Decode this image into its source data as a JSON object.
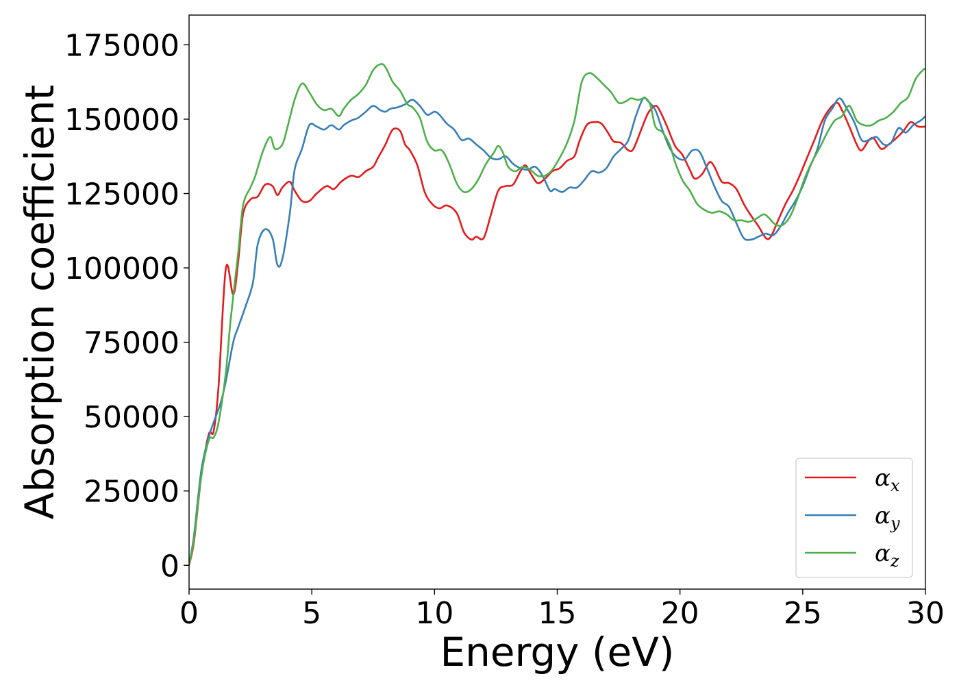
{
  "chart_data": {
    "type": "line",
    "title": "",
    "xlabel": "Energy (eV)",
    "ylabel": "Absorption coefficient",
    "xlim": [
      0,
      30
    ],
    "ylim": [
      -8000,
      185000
    ],
    "xticks": [
      0,
      5,
      10,
      15,
      20,
      25,
      30
    ],
    "xtick_labels": [
      "0",
      "5",
      "10",
      "15",
      "20",
      "25",
      "30"
    ],
    "yticks": [
      0,
      25000,
      50000,
      75000,
      100000,
      125000,
      150000,
      175000
    ],
    "ytick_labels": [
      "0",
      "25000",
      "50000",
      "75000",
      "100000",
      "125000",
      "150000",
      "175000"
    ],
    "grid": false,
    "legend_position": "lower-right",
    "series": [
      {
        "name": "αx",
        "symbol": "α",
        "subscript": "x",
        "color": "#e41a1c",
        "x": [
          0,
          0.2,
          0.5,
          0.8,
          1.0,
          1.2,
          1.5,
          1.8,
          2.0,
          2.2,
          2.5,
          2.8,
          3.1,
          3.4,
          3.6,
          3.8,
          4.1,
          4.3,
          4.6,
          4.9,
          5.2,
          5.6,
          5.9,
          6.2,
          6.6,
          6.9,
          7.2,
          7.5,
          7.7,
          8.0,
          8.3,
          8.6,
          8.8,
          9.0,
          9.3,
          9.6,
          9.9,
          10.2,
          10.5,
          10.9,
          11.2,
          11.5,
          11.7,
          12.0,
          12.3,
          12.6,
          12.9,
          13.2,
          13.5,
          13.7,
          13.9,
          14.2,
          14.5,
          14.8,
          15.1,
          15.4,
          15.7,
          15.9,
          16.2,
          16.5,
          16.8,
          17.1,
          17.3,
          17.6,
          17.9,
          18.1,
          18.4,
          18.7,
          19.0,
          19.2,
          19.5,
          19.8,
          20.1,
          20.4,
          20.6,
          20.9,
          21.2,
          21.4,
          21.7,
          22.0,
          22.3,
          22.6,
          22.9,
          23.2,
          23.5,
          23.7,
          24.0,
          24.3,
          24.6,
          24.9,
          25.2,
          25.5,
          25.8,
          26.1,
          26.4,
          26.6,
          26.9,
          27.2,
          27.4,
          27.7,
          27.9,
          28.2,
          28.5,
          28.8,
          29.1,
          29.4,
          29.7,
          30.0
        ],
        "y": [
          0,
          8000,
          30000,
          44000,
          45000,
          60000,
          100000,
          91000,
          102000,
          118000,
          123000,
          124000,
          128000,
          127500,
          124500,
          127000,
          129000,
          126000,
          122500,
          122500,
          125000,
          127500,
          126500,
          129000,
          131000,
          130500,
          132500,
          134000,
          137000,
          141500,
          146500,
          146000,
          141500,
          139500,
          134500,
          125500,
          121500,
          120000,
          121000,
          118500,
          112000,
          109500,
          110500,
          110000,
          118000,
          126000,
          127500,
          128000,
          132500,
          134500,
          132000,
          128500,
          130000,
          132500,
          133500,
          136000,
          137500,
          142500,
          148000,
          149000,
          148500,
          145000,
          142500,
          142000,
          139500,
          140000,
          146000,
          152000,
          154500,
          152500,
          147000,
          141000,
          138000,
          133000,
          130000,
          131500,
          135500,
          134000,
          129000,
          128500,
          126500,
          121500,
          117500,
          114000,
          110000,
          110500,
          116000,
          121500,
          126000,
          131500,
          137500,
          143500,
          149500,
          153500,
          155500,
          153000,
          147500,
          141500,
          139500,
          143000,
          143500,
          140000,
          141500,
          143500,
          146000,
          149000,
          147500,
          147500
        ]
      },
      {
        "name": "αy",
        "symbol": "α",
        "subscript": "y",
        "color": "#377eb8",
        "x": [
          0,
          0.2,
          0.5,
          0.8,
          1.0,
          1.3,
          1.5,
          1.8,
          2.0,
          2.3,
          2.6,
          2.8,
          3.1,
          3.4,
          3.6,
          3.8,
          4.1,
          4.3,
          4.6,
          4.9,
          5.2,
          5.5,
          5.8,
          6.1,
          6.3,
          6.6,
          6.9,
          7.2,
          7.5,
          7.8,
          8.0,
          8.2,
          8.5,
          8.8,
          9.1,
          9.4,
          9.7,
          10.0,
          10.2,
          10.5,
          10.8,
          11.1,
          11.4,
          11.7,
          12.0,
          12.3,
          12.6,
          12.9,
          13.2,
          13.5,
          13.8,
          14.1,
          14.4,
          14.7,
          14.9,
          15.2,
          15.5,
          15.8,
          16.1,
          16.4,
          16.7,
          17.0,
          17.3,
          17.6,
          17.9,
          18.2,
          18.5,
          18.7,
          19.0,
          19.3,
          19.6,
          19.9,
          20.2,
          20.5,
          20.8,
          21.1,
          21.4,
          21.7,
          22.0,
          22.3,
          22.6,
          22.9,
          23.2,
          23.5,
          23.8,
          24.1,
          24.4,
          24.7,
          25.0,
          25.3,
          25.6,
          25.9,
          26.2,
          26.5,
          26.8,
          27.1,
          27.4,
          27.7,
          28.0,
          28.3,
          28.6,
          28.9,
          29.2,
          29.5,
          29.8,
          30.0
        ],
        "y": [
          0,
          10000,
          32000,
          43000,
          48000,
          55000,
          62000,
          75000,
          80000,
          87000,
          95000,
          108000,
          113000,
          110000,
          101000,
          103000,
          118000,
          133000,
          140000,
          148000,
          147500,
          146500,
          148000,
          146500,
          148000,
          149500,
          150500,
          152500,
          154500,
          153000,
          152500,
          153500,
          154000,
          155000,
          156500,
          154500,
          151500,
          152500,
          151500,
          148500,
          146500,
          143000,
          143500,
          141500,
          139500,
          137000,
          136500,
          137500,
          135000,
          133500,
          133000,
          134000,
          131000,
          126000,
          126500,
          125500,
          127000,
          127000,
          129500,
          132500,
          132000,
          133500,
          137500,
          140000,
          143000,
          151000,
          157000,
          156000,
          153000,
          146000,
          140000,
          137000,
          136500,
          139500,
          139000,
          133500,
          127500,
          122500,
          120500,
          115000,
          110000,
          109500,
          110500,
          111500,
          111000,
          114000,
          118500,
          122500,
          127500,
          134000,
          140000,
          149500,
          153500,
          157000,
          153500,
          149000,
          143000,
          143000,
          144000,
          141500,
          142000,
          147000,
          145500,
          148000,
          149500,
          151000
        ]
      },
      {
        "name": "αz",
        "symbol": "α",
        "subscript": "z",
        "color": "#4daf4a",
        "x": [
          0,
          0.2,
          0.5,
          0.8,
          1.0,
          1.2,
          1.5,
          1.7,
          2.0,
          2.2,
          2.5,
          2.7,
          3.0,
          3.3,
          3.5,
          3.8,
          4.0,
          4.3,
          4.6,
          4.9,
          5.2,
          5.5,
          5.8,
          6.1,
          6.3,
          6.6,
          6.9,
          7.2,
          7.5,
          7.8,
          8.0,
          8.3,
          8.6,
          8.9,
          9.1,
          9.4,
          9.7,
          10.0,
          10.3,
          10.6,
          10.9,
          11.2,
          11.5,
          11.8,
          12.1,
          12.4,
          12.6,
          12.8,
          13.0,
          13.3,
          13.6,
          13.9,
          14.2,
          14.5,
          14.8,
          15.1,
          15.4,
          15.7,
          16.0,
          16.3,
          16.6,
          16.9,
          17.2,
          17.5,
          17.8,
          18.0,
          18.3,
          18.6,
          18.8,
          19.0,
          19.3,
          19.6,
          19.8,
          20.1,
          20.4,
          20.7,
          21.0,
          21.3,
          21.6,
          21.9,
          22.2,
          22.5,
          22.8,
          23.1,
          23.4,
          23.6,
          23.9,
          24.2,
          24.5,
          24.8,
          25.1,
          25.4,
          25.7,
          26.0,
          26.3,
          26.6,
          26.9,
          27.2,
          27.5,
          27.8,
          28.1,
          28.4,
          28.7,
          29.0,
          29.3,
          29.6,
          29.9,
          30.0
        ],
        "y": [
          0,
          9000,
          30000,
          42000,
          43000,
          48000,
          65000,
          83000,
          105000,
          121000,
          127000,
          131000,
          139000,
          144000,
          140000,
          141500,
          147000,
          156500,
          162000,
          159000,
          155000,
          153000,
          153500,
          151000,
          153500,
          156500,
          158500,
          161500,
          166500,
          168500,
          167500,
          162500,
          159500,
          155000,
          154000,
          150500,
          142500,
          139500,
          139500,
          135000,
          128500,
          125500,
          126500,
          130000,
          135000,
          138500,
          141000,
          138500,
          134000,
          132500,
          134000,
          133000,
          131000,
          131000,
          133000,
          137000,
          142000,
          149500,
          162500,
          165500,
          164000,
          161500,
          159000,
          155500,
          156000,
          157000,
          156500,
          157000,
          154500,
          147500,
          145500,
          141000,
          135500,
          129500,
          126000,
          121500,
          119500,
          118500,
          119000,
          118000,
          116000,
          116000,
          115500,
          116500,
          118000,
          117000,
          114500,
          114500,
          117500,
          123500,
          130500,
          136000,
          140500,
          145500,
          149500,
          151000,
          154500,
          149500,
          148000,
          148000,
          149500,
          150500,
          152500,
          155500,
          157500,
          163500,
          166500,
          167000
        ]
      }
    ]
  }
}
